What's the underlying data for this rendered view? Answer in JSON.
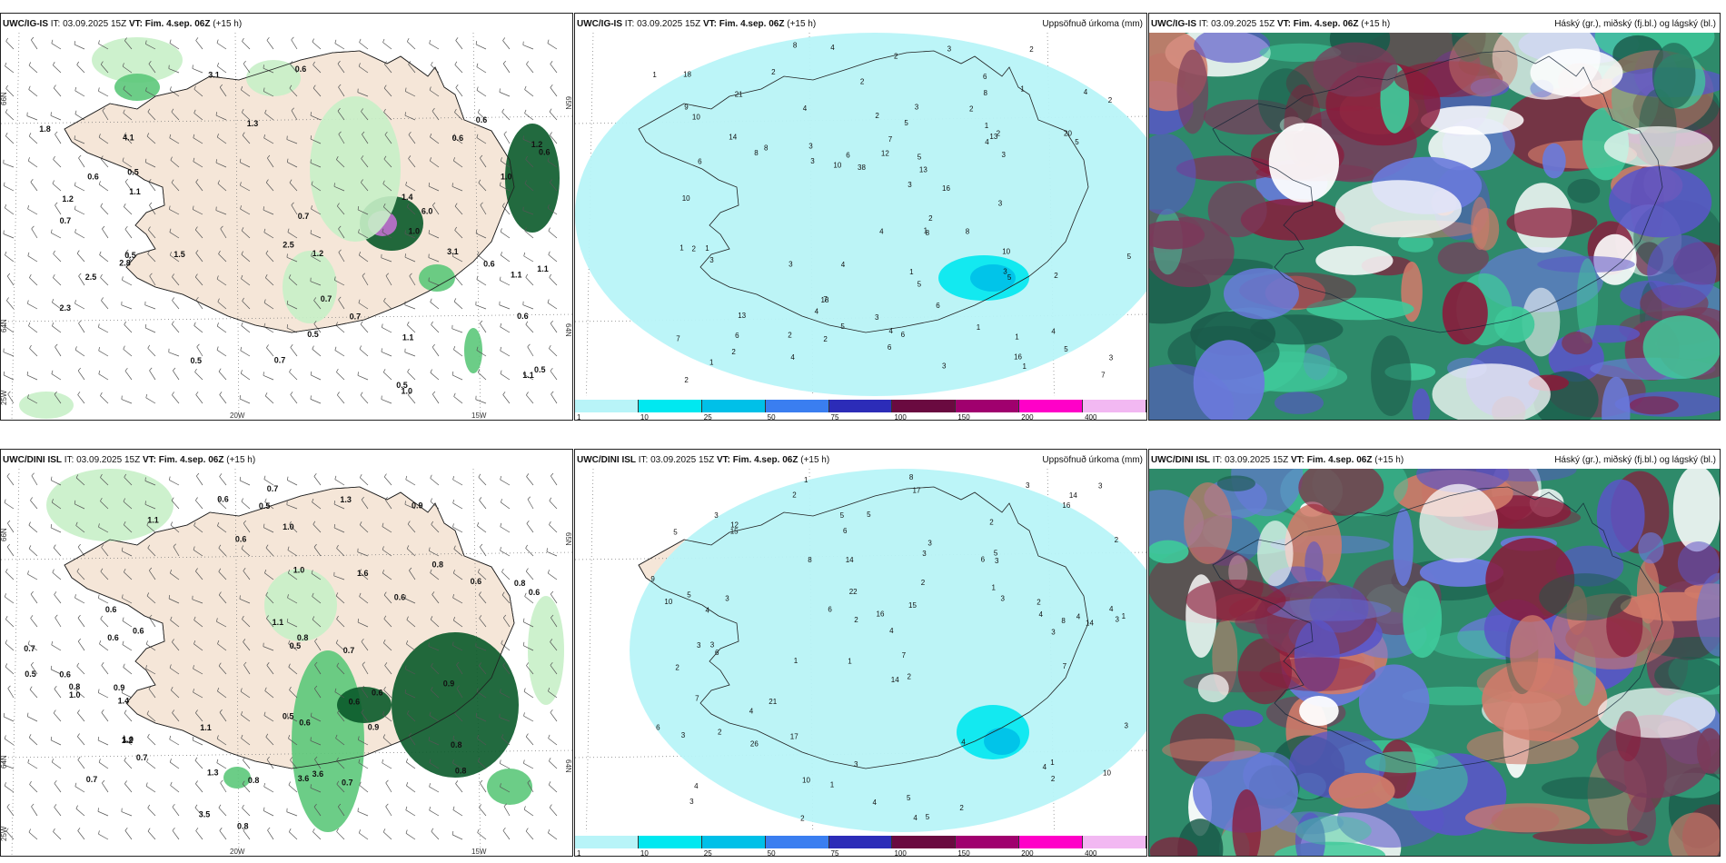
{
  "panels": [
    {
      "id": "p1",
      "model": "UWC/IG-IS",
      "it": "IT: 03.09.2025 15Z",
      "vt": "VT: Fim. 4.sep. 06Z",
      "lead": "(+15 h)",
      "right_title": "",
      "lat_labels": [
        "66N",
        "64N",
        "25W"
      ],
      "lat_labels_r": [
        "65N",
        "64N"
      ],
      "lon_labels": [
        "20W",
        "15W"
      ],
      "values": [
        "0.6",
        "0.6",
        "0.6",
        "1.0",
        "1.3",
        "0.5",
        "0.6",
        "0.5",
        "1.2",
        "0.7",
        "0.6",
        "1.4",
        "6.0",
        "1.0",
        "0.5",
        "0.6",
        "2.5",
        "3.1",
        "1.1",
        "1.2",
        "2.5",
        "0.7",
        "1.1",
        "1.5",
        "0.5",
        "1.1",
        "0.7",
        "0.5",
        "0.7",
        "2.8",
        "1.1",
        "1.8",
        "1.2",
        "4.1",
        "1.0",
        "1.1",
        "0.7",
        "0.5",
        "3.1",
        "0.6",
        "2.3"
      ]
    },
    {
      "id": "p2",
      "model": "UWC/IG-IS",
      "it": "IT: 03.09.2025 15Z",
      "vt": "VT: Fim. 4.sep. 06Z",
      "lead": "(+15 h)",
      "right_title": "Uppsöfnuð úrkoma (mm)",
      "values": [
        "1",
        "2",
        "2",
        "1",
        "2",
        "3",
        "4",
        "6",
        "1",
        "4",
        "7",
        "3",
        "5",
        "2",
        "1",
        "3",
        "3",
        "3",
        "4",
        "2",
        "1",
        "2",
        "6",
        "8",
        "5",
        "8",
        "6",
        "5",
        "5",
        "6",
        "5",
        "4",
        "3",
        "2",
        "1",
        "3",
        "4",
        "3",
        "6",
        "3",
        "8",
        "7",
        "4",
        "2",
        "3",
        "10",
        "7",
        "6",
        "5",
        "3",
        "10",
        "12",
        "18",
        "16",
        "13",
        "21",
        "20",
        "38",
        "16",
        "10",
        "13",
        "1",
        "13",
        "4",
        "1",
        "1",
        "2",
        "6",
        "4",
        "5",
        "8",
        "8",
        "3",
        "3",
        "2",
        "1",
        "2",
        "1",
        "2",
        "4",
        "18",
        "2",
        "2",
        "4",
        "2",
        "10",
        "14",
        "8",
        "9",
        "7",
        "5"
      ],
      "colorbar": {
        "ticks": [
          "1",
          "10",
          "25",
          "50",
          "75",
          "100",
          "150",
          "200",
          "400"
        ],
        "colors": [
          "#b8f4f8",
          "#00e8f0",
          "#00c0e8",
          "#3a7ef0",
          "#2c2cb8",
          "#6a0a40",
          "#a0006e",
          "#ff00c8",
          "#f2b8f2"
        ]
      }
    },
    {
      "id": "p3",
      "model": "UWC/IG-IS",
      "it": "IT: 03.09.2025 15Z",
      "vt": "VT: Fim. 4.sep. 06Z",
      "lead": "(+15 h)",
      "right_title": "Háský (gr.), miðský (fj.bl.) og lágský (bl.)"
    },
    {
      "id": "p4",
      "model": "UWC/DINI ISL",
      "it": "IT: 03.09.2025 15Z",
      "vt": "VT: Fim. 4.sep. 06Z",
      "lead": "(+15 h)",
      "right_title": "",
      "lat_labels": [
        "66N",
        "64N",
        "25W"
      ],
      "lat_labels_r": [
        "65N",
        "64N"
      ],
      "lon_labels": [
        "20W",
        "15W"
      ],
      "values": [
        "0.7",
        "0.9",
        "1.1",
        "0.8",
        "0.6",
        "0.6",
        "1.4",
        "1.0",
        "0.6",
        "0.6",
        "0.6",
        "0.7",
        "0.9",
        "0.5",
        "0.8",
        "0.6",
        "0.8",
        "0.7",
        "1.2",
        "3.5",
        "0.7",
        "0.5",
        "0.6",
        "0.8",
        "1.1",
        "1.3",
        "0.8",
        "1.3",
        "1.0",
        "0.6",
        "0.6",
        "0.7",
        "3.6",
        "0.5",
        "0.8",
        "1.0",
        "0.8",
        "0.7",
        "1.6",
        "0.9",
        "0.6",
        "1.0",
        "0.8",
        "0.9",
        "0.5",
        "0.6",
        "0.6",
        "3.6",
        "1.1"
      ]
    },
    {
      "id": "p5",
      "model": "UWC/DINI ISL",
      "it": "IT: 03.09.2025 15Z",
      "vt": "VT: Fim. 4.sep. 06Z",
      "lead": "(+15 h)",
      "right_title": "Uppsöfnuð úrkoma (mm)",
      "values": [
        "1",
        "2",
        "3",
        "1",
        "2",
        "3",
        "5",
        "6",
        "2",
        "3",
        "4",
        "3",
        "2",
        "1",
        "4",
        "5",
        "3",
        "3",
        "3",
        "4",
        "4",
        "3",
        "1",
        "4",
        "6",
        "5",
        "2",
        "4",
        "1",
        "3",
        "4",
        "3",
        "2",
        "6",
        "4",
        "3",
        "2",
        "1",
        "3",
        "5",
        "4",
        "2",
        "2",
        "3",
        "4",
        "3",
        "2",
        "5",
        "9",
        "7",
        "6",
        "3",
        "15",
        "16",
        "17",
        "26",
        "22",
        "16",
        "14",
        "14",
        "10",
        "7",
        "12",
        "17",
        "14",
        "10",
        "8",
        "6",
        "8",
        "2",
        "7",
        "5",
        "4",
        "1",
        "2",
        "3",
        "10",
        "15",
        "14",
        "21",
        "8",
        "5"
      ],
      "colorbar": {
        "ticks": [
          "1",
          "10",
          "25",
          "50",
          "75",
          "100",
          "150",
          "200",
          "400"
        ],
        "colors": [
          "#b8f4f8",
          "#00e8f0",
          "#00c0e8",
          "#3a7ef0",
          "#2c2cb8",
          "#6a0a40",
          "#a0006e",
          "#ff00c8",
          "#f2b8f2"
        ]
      }
    },
    {
      "id": "p6",
      "model": "UWC/DINI ISL",
      "it": "IT: 03.09.2025 15Z",
      "vt": "VT: Fim. 4.sep. 06Z",
      "lead": "(+15 h)",
      "right_title": "Háský (gr.), miðský (fj.bl.) og lágský (bl.)"
    }
  ],
  "legend_colors": {
    "land": "#f5e6d8",
    "sea": "#ffffff",
    "light_green": "#c8f0c8",
    "green": "#5cc87a",
    "dark_green": "#0a5a2a",
    "cyan_light": "#bff5f8",
    "cloud_high": "#2e8a6a",
    "cloud_mid": "#5a55c8",
    "cloud_low": "#8a1a3a"
  }
}
